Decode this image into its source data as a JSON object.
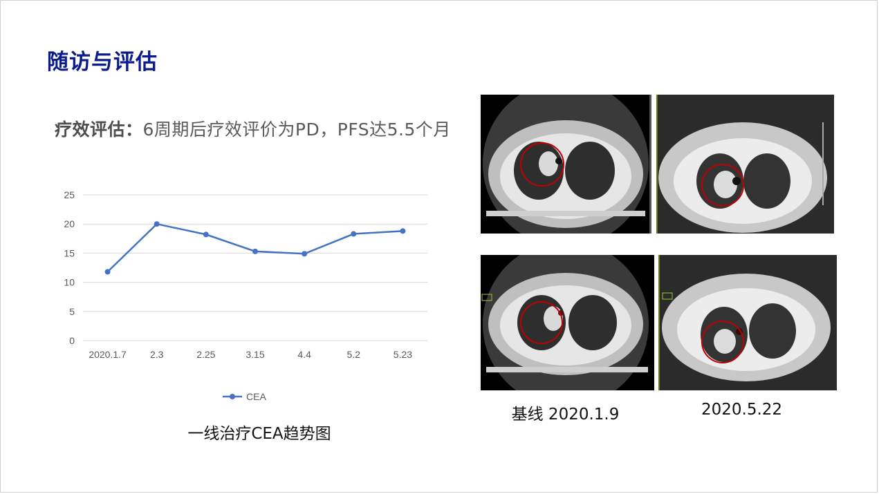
{
  "slide": {
    "title": "随访与评估",
    "assessment_label": "疗效评估：",
    "assessment_text": "6周期后疗效评价为PD，PFS达5.5个月",
    "chart_caption": "一线治疗CEA趋势图",
    "scan_captions": [
      "基线 2020.1.9",
      "2020.5.22"
    ]
  },
  "colors": {
    "title": "#0b1a8c",
    "series": "#4472c4",
    "circle": "#c00000"
  },
  "chart_data": {
    "type": "line",
    "categories": [
      "2020.1.7",
      "2.3",
      "2.25",
      "3.15",
      "4.4",
      "5.2",
      "5.23"
    ],
    "series": [
      {
        "name": "CEA",
        "values": [
          11.8,
          20.0,
          18.2,
          15.3,
          14.9,
          18.3,
          18.8
        ]
      }
    ],
    "y_ticks": [
      "0",
      "5",
      "10",
      "15",
      "20",
      "25"
    ],
    "ylim": [
      0,
      25
    ],
    "grid": true,
    "legend": "bottom"
  }
}
